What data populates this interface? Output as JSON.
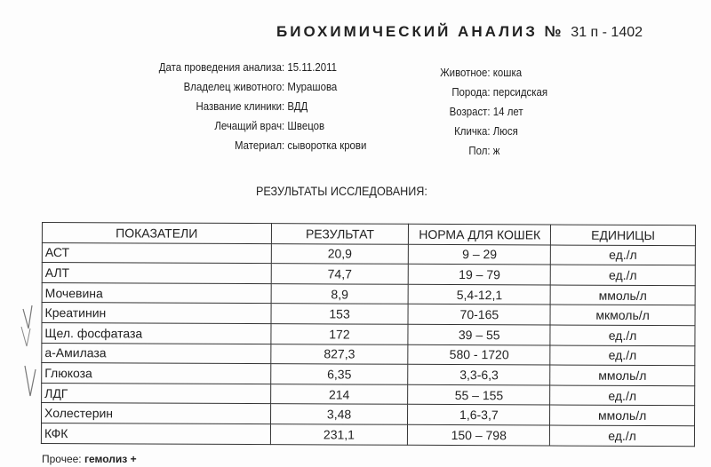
{
  "title": {
    "text": "БИОХИМИЧЕСКИЙ АНАЛИЗ №",
    "number": "31 п - 1402"
  },
  "info_left": [
    {
      "label": "Дата проведения анализа:",
      "value": "15.11.2011"
    },
    {
      "label": "Владелец животного:",
      "value": "Мурашова"
    },
    {
      "label": "Название клиники:",
      "value": "ВДД"
    },
    {
      "label": "Лечащий врач:",
      "value": "Швецов"
    },
    {
      "label": "Материал:",
      "value": "сыворотка крови"
    }
  ],
  "info_right": [
    {
      "label": "Животное:",
      "value": "кошка"
    },
    {
      "label": "Порода:",
      "value": "персидская"
    },
    {
      "label": "Возраст:",
      "value": "14 лет"
    },
    {
      "label": "Кличка:",
      "value": "Люся"
    },
    {
      "label": "Пол:",
      "value": "ж"
    }
  ],
  "results_heading": "РЕЗУЛЬТАТЫ ИССЛЕДОВАНИЯ:",
  "table": {
    "headers": [
      "ПОКАЗАТЕЛИ",
      "РЕЗУЛЬТАТ",
      "НОРМА ДЛЯ КОШЕК",
      "ЕДИНИЦЫ"
    ],
    "rows": [
      [
        "АСТ",
        "20,9",
        "9 – 29",
        "ед./л"
      ],
      [
        "АЛТ",
        "74,7",
        "19 – 79",
        "ед./л"
      ],
      [
        "Мочевина",
        "8,9",
        "5,4-12,1",
        "ммоль/л"
      ],
      [
        "Креатинин",
        "153",
        "70-165",
        "мкмоль/л"
      ],
      [
        "Щел. фосфатаза",
        "172",
        "39 – 55",
        "ед./л"
      ],
      [
        "а-Амилаза",
        "827,3",
        "580  - 1720",
        "ед./л"
      ],
      [
        "Глюкоза",
        "6,35",
        "3,3-6,3",
        "ммоль/л"
      ],
      [
        "ЛДГ",
        "214",
        "55 – 155",
        "ед./л"
      ],
      [
        "Холестерин",
        "3,48",
        "1,6-3,7",
        "ммоль/л"
      ],
      [
        "КФК",
        "231,1",
        "150 – 798",
        "ед./л"
      ]
    ]
  },
  "other": {
    "label": "Прочее:",
    "value": "гемолиз +"
  }
}
